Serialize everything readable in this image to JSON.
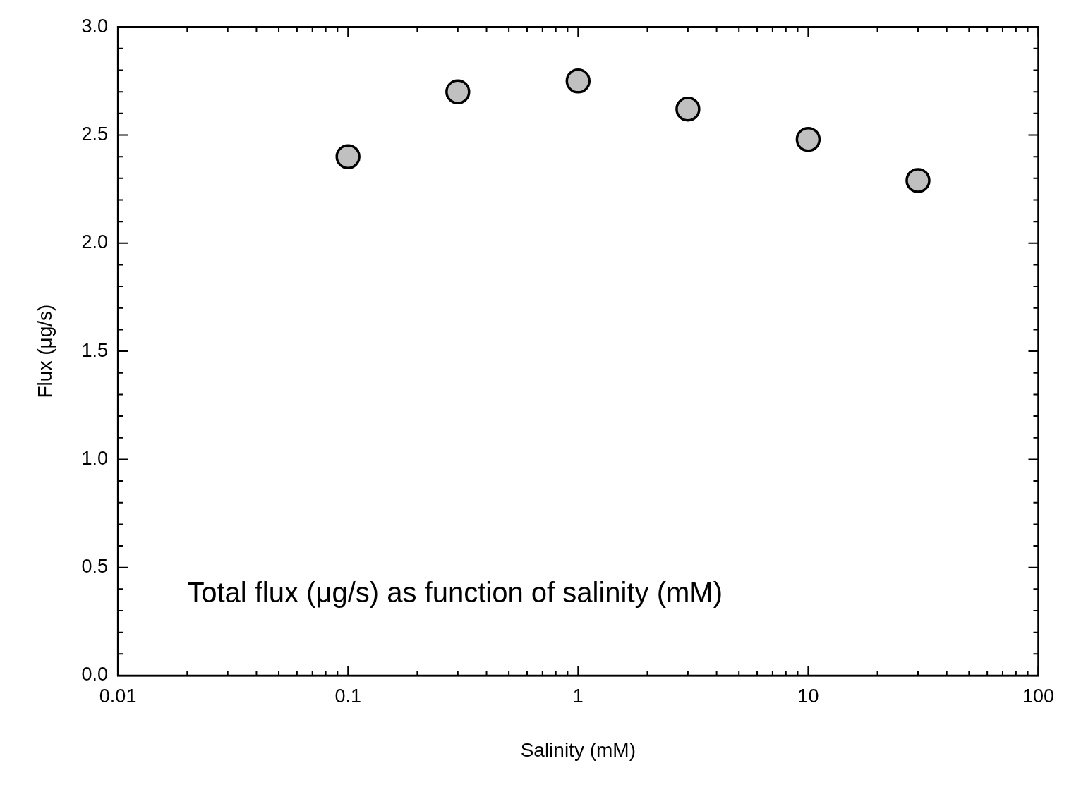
{
  "chart_data": {
    "type": "scatter",
    "xlabel": "Salinity (mM)",
    "ylabel": "Flux (μg/s)",
    "annotations": [
      "Total flux (μg/s) as function of salinity (mM)"
    ],
    "x": [
      0.1,
      0.3,
      1,
      3,
      10,
      30
    ],
    "series": [
      {
        "color": "#c0c0c0",
        "values": [
          2.4,
          2.7,
          2.75,
          2.62,
          2.48,
          2.29
        ]
      }
    ],
    "log": "x",
    "marker": "circle",
    "xlim": [
      0.01,
      100
    ],
    "xticks": [
      0.01,
      {
        "value": 0.02,
        "label": null
      },
      {
        "value": 0.03,
        "label": null
      },
      {
        "value": 0.04,
        "label": null
      },
      {
        "value": 0.05,
        "label": null
      },
      {
        "value": 0.06,
        "label": null
      },
      {
        "value": 0.07,
        "label": null
      },
      {
        "value": 0.08,
        "label": null
      },
      {
        "value": 0.09,
        "label": null
      },
      0.1,
      {
        "value": 0.2,
        "label": null
      },
      {
        "value": 0.3,
        "label": null
      },
      {
        "value": 0.4,
        "label": null
      },
      {
        "value": 0.5,
        "label": null
      },
      {
        "value": 0.6,
        "label": null
      },
      {
        "value": 0.7,
        "label": null
      },
      {
        "value": 0.8,
        "label": null
      },
      {
        "value": 0.9,
        "label": null
      },
      1,
      {
        "value": 2,
        "label": null
      },
      {
        "value": 3,
        "label": null
      },
      {
        "value": 4,
        "label": null
      },
      {
        "value": 5,
        "label": null
      },
      {
        "value": 6,
        "label": null
      },
      {
        "value": 7,
        "label": null
      },
      {
        "value": 8,
        "label": null
      },
      {
        "value": 9,
        "label": null
      },
      10,
      {
        "value": 20,
        "label": null
      },
      {
        "value": 30,
        "label": null
      },
      {
        "value": 40,
        "label": null
      },
      {
        "value": 50,
        "label": null
      },
      {
        "value": 60,
        "label": null
      },
      {
        "value": 70,
        "label": null
      },
      {
        "value": 80,
        "label": null
      },
      {
        "value": 90,
        "label": null
      },
      100
    ],
    "ylim": [
      0,
      3
    ],
    "yticks": [
      {
        "value": 0,
        "label": "0.0"
      },
      {
        "value": 0.1,
        "label": null
      },
      {
        "value": 0.2,
        "label": null
      },
      {
        "value": 0.3,
        "label": null
      },
      {
        "value": 0.4,
        "label": null
      },
      {
        "value": 0.5,
        "label": "0.5"
      },
      {
        "value": 0.6,
        "label": null
      },
      {
        "value": 0.7,
        "label": null
      },
      {
        "value": 0.8,
        "label": null
      },
      {
        "value": 0.9,
        "label": null
      },
      {
        "value": 1,
        "label": "1.0"
      },
      {
        "value": 1.1,
        "label": null
      },
      {
        "value": 1.2,
        "label": null
      },
      {
        "value": 1.3,
        "label": null
      },
      {
        "value": 1.4,
        "label": null
      },
      {
        "value": 1.5,
        "label": "1.5"
      },
      {
        "value": 1.6,
        "label": null
      },
      {
        "value": 1.7,
        "label": null
      },
      {
        "value": 1.8,
        "label": null
      },
      {
        "value": 1.9,
        "label": null
      },
      {
        "value": 2,
        "label": "2.0"
      },
      {
        "value": 2.1,
        "label": null
      },
      {
        "value": 2.2,
        "label": null
      },
      {
        "value": 2.3,
        "label": null
      },
      {
        "value": 2.4,
        "label": null
      },
      {
        "value": 2.5,
        "label": "2.5"
      },
      {
        "value": 2.6,
        "label": null
      },
      {
        "value": 2.7,
        "label": null
      },
      {
        "value": 2.8,
        "label": null
      },
      {
        "value": 2.9,
        "label": null
      },
      {
        "value": 3,
        "label": "3.0"
      }
    ]
  }
}
